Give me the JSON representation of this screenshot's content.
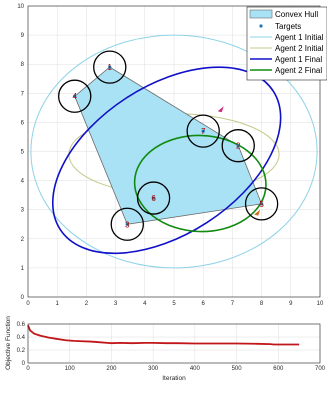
{
  "chart_data": [
    {
      "type": "scatter",
      "title": "",
      "xlabel": "",
      "ylabel": "",
      "xlim": [
        0,
        10
      ],
      "ylim": [
        0,
        10
      ],
      "xticks": [
        "0",
        "1",
        "2",
        "3",
        "4",
        "5",
        "6",
        "7",
        "8",
        "9",
        "10"
      ],
      "yticks": [
        "0",
        "1",
        "2",
        "3",
        "4",
        "5",
        "6",
        "7",
        "8",
        "9",
        "10"
      ],
      "grid": true,
      "legend_position": "top-right",
      "legend": [
        {
          "label": "Convex Hull",
          "kind": "patch",
          "color": "#a9e2f5"
        },
        {
          "label": "Targets",
          "kind": "marker",
          "color": "#1f77b4"
        },
        {
          "label": "Agent 1 Initial",
          "kind": "line",
          "color": "#8fd3e8"
        },
        {
          "label": "Agent 2 Initial",
          "kind": "line",
          "color": "#c5c98a"
        },
        {
          "label": "Agent 1 Final",
          "kind": "line",
          "color": "#1010c8"
        },
        {
          "label": "Agent 2 Final",
          "kind": "line",
          "color": "#128a12"
        }
      ],
      "convex_hull": [
        [
          2.8,
          7.9
        ],
        [
          1.6,
          6.9
        ],
        [
          3.4,
          2.5
        ],
        [
          8.0,
          3.2
        ],
        [
          7.2,
          5.2
        ]
      ],
      "targets": [
        {
          "id": "1",
          "x": 2.8,
          "y": 7.9
        },
        {
          "id": "2",
          "x": 7.2,
          "y": 5.2
        },
        {
          "id": "3",
          "x": 3.4,
          "y": 2.5
        },
        {
          "id": "4",
          "x": 1.6,
          "y": 6.9
        },
        {
          "id": "5",
          "x": 8.0,
          "y": 3.2
        },
        {
          "id": "6",
          "x": 4.3,
          "y": 3.4
        },
        {
          "id": "7",
          "x": 6.0,
          "y": 5.7
        }
      ],
      "target_circle_radius": 0.55,
      "ellipses": [
        {
          "name": "Agent 1 Initial",
          "color": "#8fd3e8",
          "cx": 5.0,
          "cy": 5.0,
          "rx": 4.9,
          "ry": 4.0,
          "angle": 0
        },
        {
          "name": "Agent 2 Initial",
          "color": "#c5c98a",
          "cx": 5.0,
          "cy": 4.9,
          "rx": 3.6,
          "ry": 1.4,
          "angle": 0
        },
        {
          "name": "Agent 1 Final",
          "color": "#1010c8",
          "cx": 4.75,
          "cy": 4.7,
          "rx": 4.35,
          "ry": 2.55,
          "angle": -33
        },
        {
          "name": "Agent 2 Final",
          "color": "#128a12",
          "cx": 5.9,
          "cy": 3.9,
          "rx": 2.25,
          "ry": 1.65,
          "angle": 2
        }
      ],
      "agent_markers": [
        {
          "x": 6.6,
          "y": 6.45,
          "color": "#cc2a7a"
        },
        {
          "x": 7.85,
          "y": 2.9,
          "color": "#d2691e"
        }
      ]
    },
    {
      "type": "line",
      "title": "",
      "xlabel": "Iteration",
      "ylabel": "Objective Function",
      "xlim": [
        0,
        700
      ],
      "ylim": [
        0,
        0.6
      ],
      "xticks": [
        "0",
        "100",
        "200",
        "300",
        "400",
        "500",
        "600",
        "700"
      ],
      "yticks": [
        "0",
        "0.2",
        "0.4",
        "0.6"
      ],
      "grid": true,
      "series": [
        {
          "color": "#c0161a",
          "x": [
            0,
            5,
            15,
            30,
            50,
            70,
            90,
            110,
            130,
            150,
            170,
            190,
            200,
            220,
            250,
            280,
            300,
            330,
            360,
            400,
            450,
            500,
            550,
            580,
            590,
            620,
            650
          ],
          "y": [
            0.58,
            0.5,
            0.45,
            0.42,
            0.39,
            0.37,
            0.35,
            0.34,
            0.335,
            0.33,
            0.32,
            0.31,
            0.305,
            0.31,
            0.305,
            0.31,
            0.31,
            0.305,
            0.305,
            0.3,
            0.3,
            0.3,
            0.295,
            0.29,
            0.285,
            0.285,
            0.285
          ]
        }
      ]
    }
  ]
}
